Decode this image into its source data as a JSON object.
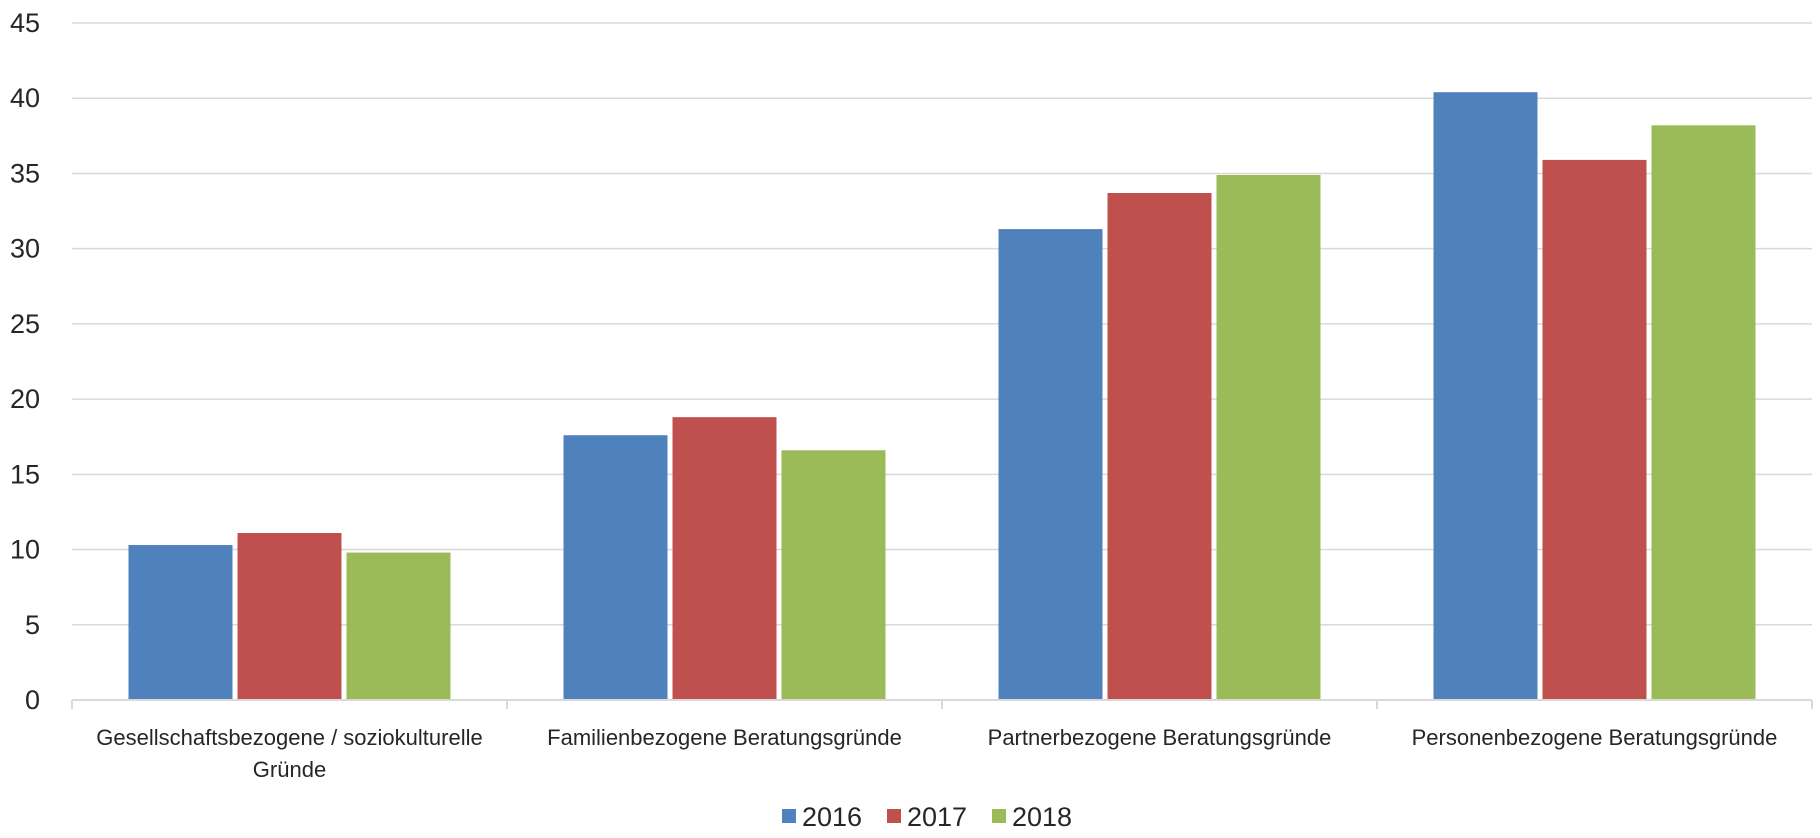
{
  "chart_data": {
    "type": "bar",
    "title": "",
    "xlabel": "",
    "ylabel": "",
    "ylim": [
      0,
      45
    ],
    "yticks": [
      0,
      5,
      10,
      15,
      20,
      25,
      30,
      35,
      40,
      45
    ],
    "grid": true,
    "legend_position": "bottom",
    "categories": [
      [
        "Gesellschaftsbezogene / soziokulturelle",
        "Gründe"
      ],
      [
        "Familienbezogene Beratungsgründe"
      ],
      [
        "Partnerbezogene Beratungsgründe"
      ],
      [
        "Personenbezogene Beratungsgründe"
      ]
    ],
    "series": [
      {
        "name": "2016",
        "color": "#4f81bd",
        "values": [
          10.3,
          17.6,
          31.3,
          40.4
        ]
      },
      {
        "name": "2017",
        "color": "#c0504d",
        "values": [
          11.1,
          18.8,
          33.7,
          35.9
        ]
      },
      {
        "name": "2018",
        "color": "#9bbb59",
        "values": [
          9.8,
          16.6,
          34.9,
          38.2
        ]
      }
    ]
  }
}
